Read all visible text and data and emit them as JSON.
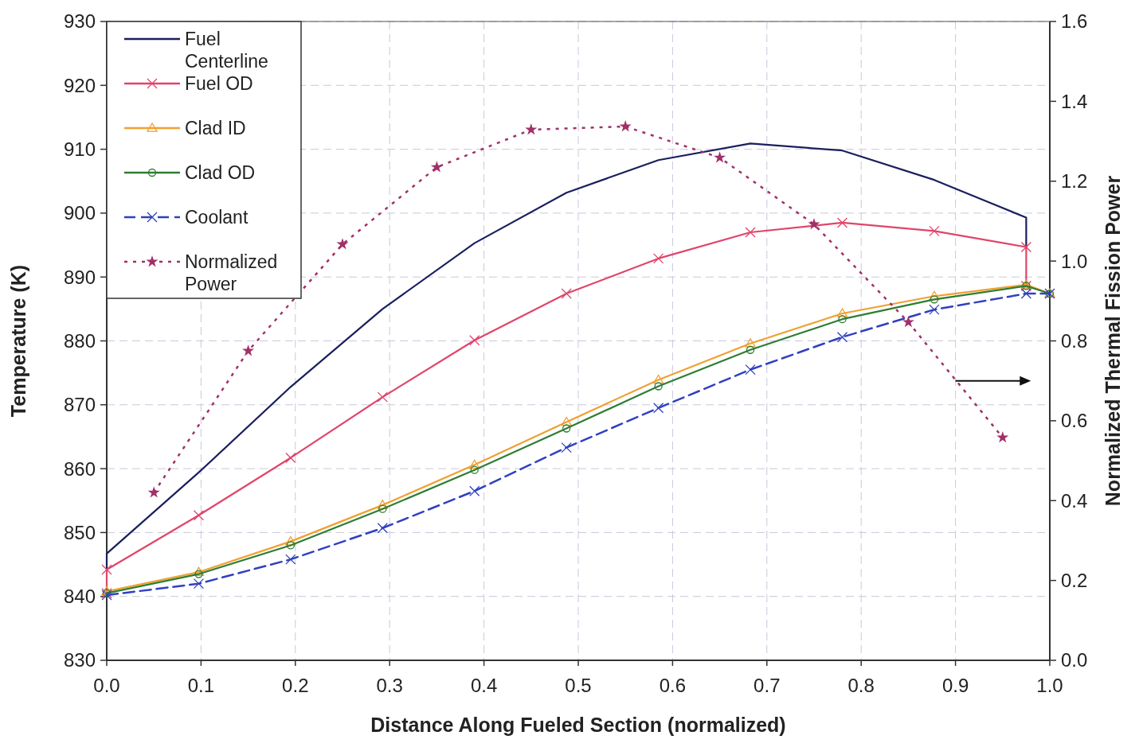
{
  "chart_data": {
    "type": "line",
    "xlabel": "Distance Along Fueled Section (normalized)",
    "ylabel": "Temperature (K)",
    "y2label": "Normalized Thermal Fission Power",
    "xlim": [
      0,
      1
    ],
    "xticks": [
      {
        "value": 0,
        "label": "0.0"
      },
      0.1,
      0.2,
      0.3,
      0.4,
      0.5,
      0.6,
      0.7,
      0.8,
      0.9,
      {
        "value": 1,
        "label": "1.0"
      }
    ],
    "ylim": [
      830,
      930
    ],
    "yticks": [
      830,
      840,
      850,
      860,
      870,
      880,
      890,
      900,
      910,
      920,
      930
    ],
    "y2lim": [
      0,
      1.6
    ],
    "y2ticks": [
      {
        "value": 0,
        "label": "0.0"
      },
      0.2,
      0.4,
      0.6,
      0.8,
      {
        "value": 1,
        "label": "1.0"
      },
      1.2,
      1.4,
      1.6
    ],
    "grid": true,
    "legend": "top left",
    "series": [
      {
        "name": "Fuel Centerline",
        "color": "#1a1f5e",
        "marker": "none",
        "line_style": "solid",
        "x": [
          0,
          0,
          0.0975,
          0.195,
          0.2925,
          0.39,
          0.4875,
          0.585,
          0.6825,
          0.78,
          0.8775,
          0.975,
          0.975
        ],
        "values": [
          844.2,
          846.7,
          859.4,
          872.8,
          885,
          895.3,
          903.2,
          908.3,
          910.9,
          909.8,
          905.2,
          899.3,
          894.7
        ]
      },
      {
        "name": "Fuel OD",
        "color": "#e0456a",
        "marker": "cross",
        "line_style": "solid",
        "x": [
          0,
          0,
          0.0975,
          0.195,
          0.2925,
          0.39,
          0.4875,
          0.585,
          0.6825,
          0.78,
          0.8775,
          0.975,
          0.975
        ],
        "values": [
          840.5,
          844.2,
          852.7,
          861.7,
          871.2,
          880.1,
          887.4,
          892.9,
          897,
          898.5,
          897.2,
          894.7,
          888.6
        ]
      },
      {
        "name": "Clad ID",
        "color": "#f0a030",
        "marker": "triangle",
        "line_style": "solid",
        "x": [
          0,
          0.0975,
          0.195,
          0.2925,
          0.39,
          0.4875,
          0.585,
          0.6825,
          0.78,
          0.8775,
          0.975,
          1
        ],
        "values": [
          840.8,
          843.8,
          848.6,
          854.3,
          860.6,
          867.3,
          873.9,
          879.6,
          884.3,
          887,
          888.8,
          887.4
        ]
      },
      {
        "name": "Clad OD",
        "color": "#2e7d32",
        "marker": "circle",
        "line_style": "solid",
        "x": [
          0,
          0.0975,
          0.195,
          0.2925,
          0.39,
          0.4875,
          0.585,
          0.6825,
          0.78,
          0.8775,
          0.975,
          1
        ],
        "values": [
          840.5,
          843.5,
          848,
          853.7,
          859.8,
          866.3,
          872.9,
          878.6,
          883.4,
          886.5,
          888.6,
          887.4
        ]
      },
      {
        "name": "Coolant",
        "color": "#3040c0",
        "marker": "cross",
        "line_style": "dashed",
        "x": [
          0,
          0.0975,
          0.195,
          0.2925,
          0.39,
          0.4875,
          0.585,
          0.6825,
          0.78,
          0.8775,
          0.975,
          1
        ],
        "values": [
          840.2,
          842,
          845.8,
          850.7,
          856.5,
          863.3,
          869.5,
          875.5,
          880.6,
          884.9,
          887.4,
          887.4
        ]
      },
      {
        "name": "Normalized Power",
        "color": "#a0306a",
        "marker": "star",
        "line_style": "dotted",
        "axis": "y2",
        "x": [
          0.05,
          0.15,
          0.25,
          0.35,
          0.45,
          0.55,
          0.65,
          0.75,
          0.85,
          0.95
        ],
        "values": [
          0.42,
          0.775,
          1.042,
          1.235,
          1.329,
          1.337,
          1.259,
          1.092,
          0.847,
          0.558
        ]
      }
    ]
  }
}
